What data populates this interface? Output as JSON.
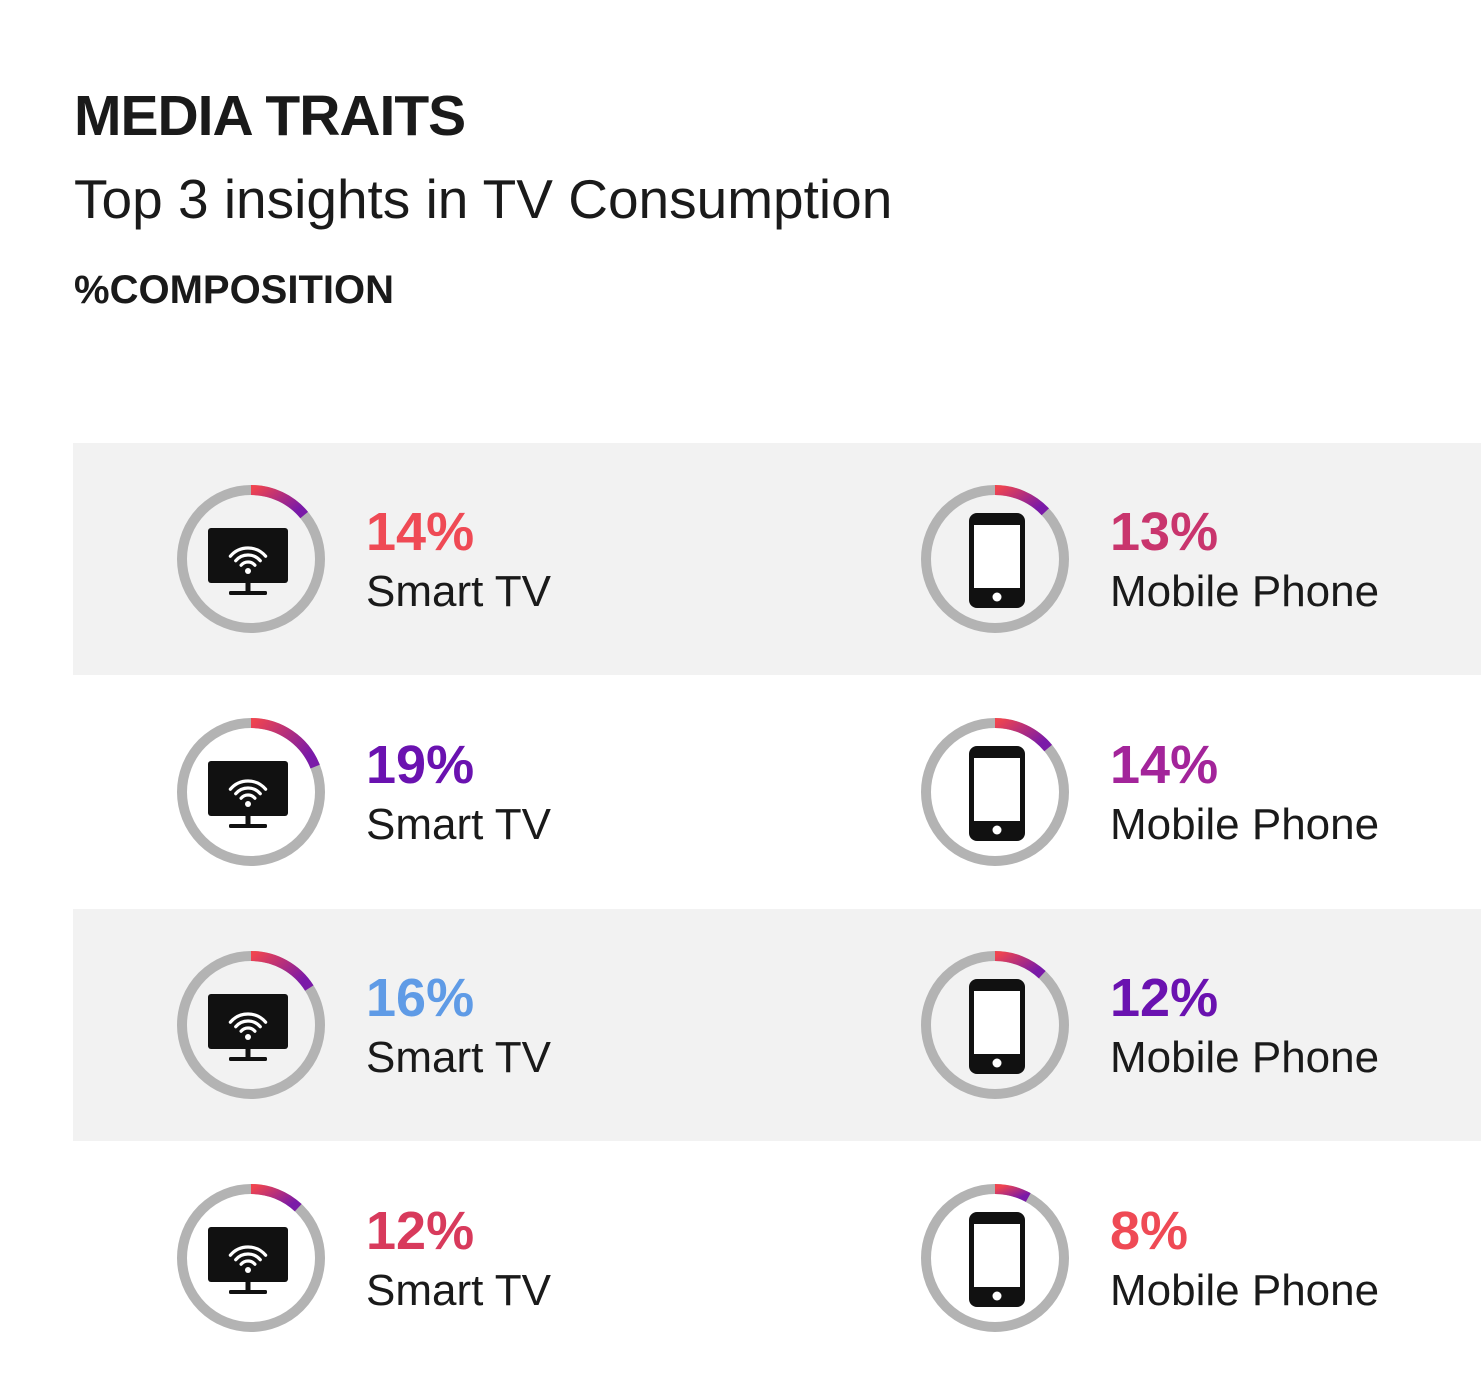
{
  "header": {
    "title": "MEDIA TRAITS",
    "subtitle": "Top 3 insights in TV Consumption",
    "composition_label": "%COMPOSITION"
  },
  "colors": {
    "row_shade": "#f2f2f2",
    "ring_track": "#b3b3b3",
    "arc_start": "#f0444f",
    "arc_end": "#7a1aa8",
    "icon": "#111111"
  },
  "chart_data": {
    "type": "donut-grid",
    "title": "MEDIA TRAITS",
    "subtitle": "Top 3 insights in TV Consumption",
    "unit": "%COMPOSITION",
    "rows": [
      {
        "shaded": true,
        "items": [
          {
            "device": "Smart TV",
            "icon": "smart-tv-icon",
            "value": 14,
            "label": "14%",
            "label_color": "#ef4a55"
          },
          {
            "device": "Mobile Phone",
            "icon": "mobile-phone-icon",
            "value": 13,
            "label": "13%",
            "label_color": "#c9356d"
          }
        ]
      },
      {
        "shaded": false,
        "items": [
          {
            "device": "Smart TV",
            "icon": "smart-tv-icon",
            "value": 19,
            "label": "19%",
            "label_color": "#6a12b0"
          },
          {
            "device": "Mobile Phone",
            "icon": "mobile-phone-icon",
            "value": 14,
            "label": "14%",
            "label_color": "#a3249a"
          }
        ]
      },
      {
        "shaded": true,
        "items": [
          {
            "device": "Smart TV",
            "icon": "smart-tv-icon",
            "value": 16,
            "label": "16%",
            "label_color": "#5f9be6"
          },
          {
            "device": "Mobile Phone",
            "icon": "mobile-phone-icon",
            "value": 12,
            "label": "12%",
            "label_color": "#6a12b0"
          }
        ]
      },
      {
        "shaded": false,
        "items": [
          {
            "device": "Smart TV",
            "icon": "smart-tv-icon",
            "value": 12,
            "label": "12%",
            "label_color": "#d83a5c"
          },
          {
            "device": "Mobile Phone",
            "icon": "mobile-phone-icon",
            "value": 8,
            "label": "8%",
            "label_color": "#ef4a55"
          }
        ]
      }
    ]
  }
}
